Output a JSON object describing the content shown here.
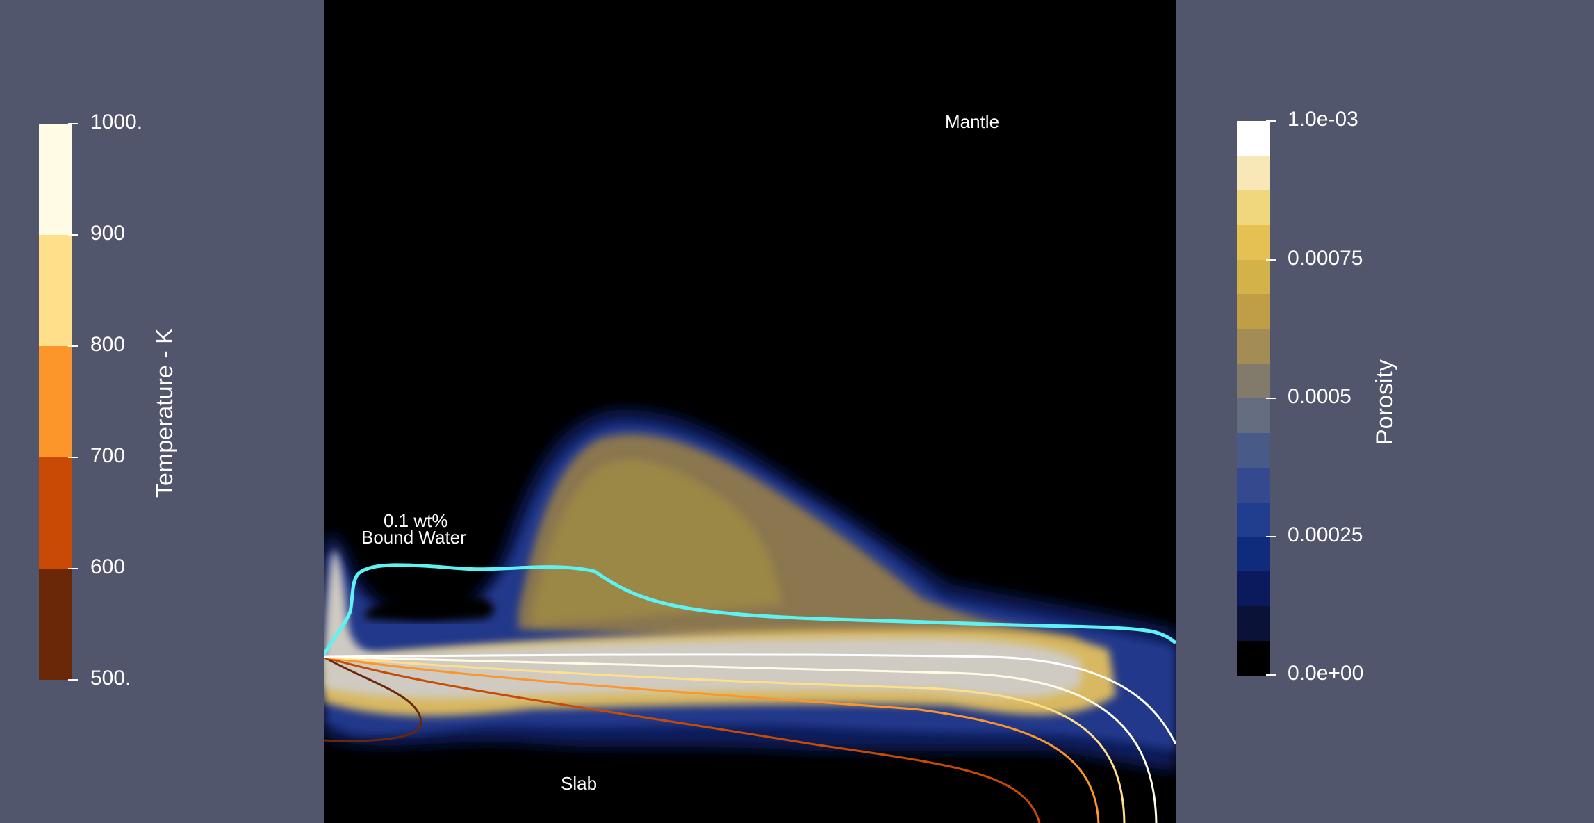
{
  "scene": {
    "mantle_label": "Mantle",
    "slab_label": "Slab",
    "bound_water_label_line1": "0.1 wt%",
    "bound_water_label_line2": "Bound Water",
    "bound_water_contour_color": "#5ff2f2"
  },
  "temperature_colorbar": {
    "title": "Temperature - K",
    "ticks": [
      "1000.",
      "900",
      "800",
      "700",
      "600",
      "500."
    ],
    "segments": [
      {
        "range": [
          900,
          1000
        ],
        "color": "#fffbe5"
      },
      {
        "range": [
          800,
          900
        ],
        "color": "#ffdf8a"
      },
      {
        "range": [
          700,
          800
        ],
        "color": "#fd962a"
      },
      {
        "range": [
          600,
          700
        ],
        "color": "#c94a05"
      },
      {
        "range": [
          500,
          600
        ],
        "color": "#6b2808"
      }
    ]
  },
  "porosity_colorbar": {
    "title": "Porosity",
    "ticks": [
      "1.0e-03",
      "0.00075",
      "0.0005",
      "0.00025",
      "0.0e+00"
    ],
    "segments": [
      "#ffffff",
      "#f8e8b8",
      "#f0d77e",
      "#e4c152",
      "#d3b247",
      "#bf9e45",
      "#a48d55",
      "#827a6b",
      "#656d80",
      "#485a88",
      "#34498e",
      "#213d8e",
      "#0e2b7c",
      "#0b1a5c",
      "#0b1238",
      "#000000"
    ]
  }
}
